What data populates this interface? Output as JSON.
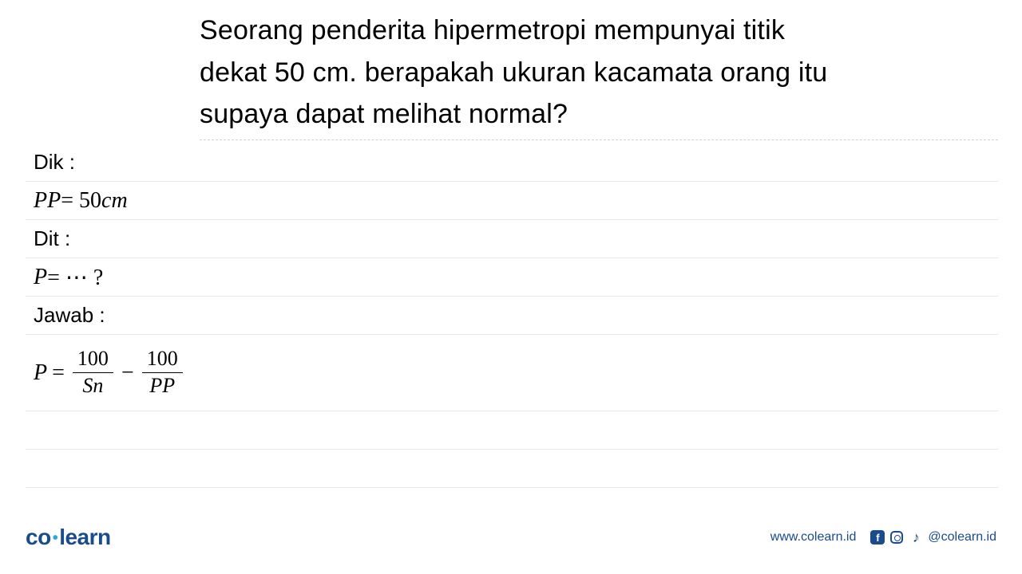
{
  "question": {
    "text": "Seorang penderita hipermetropi mempunyai titik dekat 50 cm. berapakah ukuran kacamata orang itu supaya dapat melihat normal?"
  },
  "worksheet": {
    "dik_label": "Dik :",
    "pp_var": "PP",
    "pp_eq": " = 50 ",
    "pp_unit": "cm",
    "dit_label": "Dit :",
    "p_var": "P",
    "p_eq": " = ⋯ ?",
    "jawab_label": "Jawab :",
    "formula": {
      "lhs_var": "P",
      "equals": " = ",
      "frac1_num": "100",
      "frac1_den": "Sn",
      "minus": " − ",
      "frac2_num": "100",
      "frac2_den": "PP"
    }
  },
  "footer": {
    "logo_co": "co",
    "logo_learn": "learn",
    "website": "www.colearn.id",
    "handle": "@colearn.id",
    "fb_letter": "f",
    "tiktok_symbol": "♪"
  },
  "colors": {
    "text": "#000000",
    "line": "#e8e8e8",
    "brand": "#1a4b8c",
    "accent": "#2aa8e0",
    "background": "#ffffff"
  }
}
